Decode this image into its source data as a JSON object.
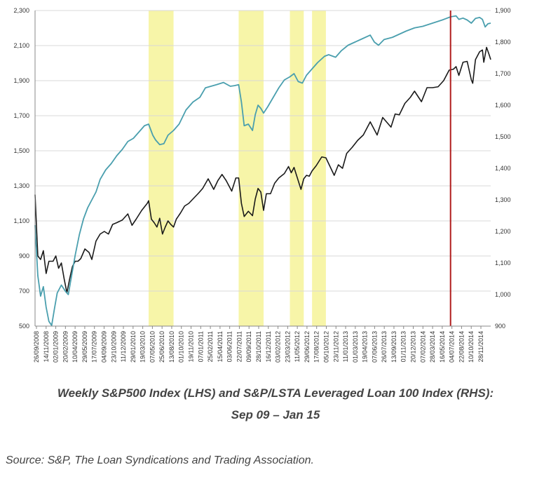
{
  "chart_data": {
    "type": "line",
    "title": "",
    "caption": [
      "Weekly S&P500 Index (LHS) and S&P/LSTA Leveraged Loan 100 Index (RHS):",
      "Sep 09 – Jan 15"
    ],
    "source": "Source: S&P, The Loan Syndications and Trading Association.",
    "grid": true,
    "legend": "none",
    "y_left": {
      "min": 500,
      "max": 2300,
      "ticks": [
        "500",
        "700",
        "900",
        "1,100",
        "1,300",
        "1,500",
        "1,700",
        "1,900",
        "2,100",
        "2,300"
      ]
    },
    "y_right": {
      "min": 900,
      "max": 1900,
      "ticks": [
        "900",
        "1,000",
        "1,100",
        "1,200",
        "1,300",
        "1,400",
        "1,500",
        "1,600",
        "1,700",
        "1,800",
        "1,900"
      ]
    },
    "x_range": [
      "2008-09-26",
      "2015-01-16"
    ],
    "x_ticks": [
      "26/09/2008",
      "14/11/2008",
      "02/01/2009",
      "20/02/2009",
      "10/04/2009",
      "29/05/2009",
      "17/07/2009",
      "04/09/2009",
      "23/10/2009",
      "11/12/2009",
      "29/01/2010",
      "19/03/2010",
      "07/05/2010",
      "25/06/2010",
      "13/08/2010",
      "01/10/2010",
      "19/11/2010",
      "07/01/2011",
      "25/02/2011",
      "15/04/2011",
      "03/06/2011",
      "22/07/2011",
      "09/09/2011",
      "28/10/2011",
      "16/12/2011",
      "03/02/2012",
      "23/03/2012",
      "11/05/2012",
      "29/06/2012",
      "17/08/2012",
      "05/10/2012",
      "23/11/2012",
      "11/01/2013",
      "01/03/2013",
      "19/04/2013",
      "07/06/2013",
      "26/07/2013",
      "13/09/2013",
      "01/11/2013",
      "20/12/2013",
      "07/02/2014",
      "28/03/2014",
      "16/05/2014",
      "04/07/2014",
      "22/08/2014",
      "10/10/2014",
      "28/11/2014"
    ],
    "shaded_periods": [
      {
        "start": "2010-04-23",
        "end": "2010-08-27"
      },
      {
        "start": "2011-07-22",
        "end": "2011-11-25"
      },
      {
        "start": "2012-04-06",
        "end": "2012-06-15"
      },
      {
        "start": "2012-07-27",
        "end": "2012-10-05"
      }
    ],
    "shade_color": "#f7f5a8",
    "marker": {
      "date": "2014-06-27",
      "color": "#b01c1c"
    },
    "series": [
      {
        "name": "",
        "axis": "left",
        "color": "#1a1a1a",
        "points": [
          [
            "2008-09-26",
            1250
          ],
          [
            "2008-10-10",
            900
          ],
          [
            "2008-10-24",
            880
          ],
          [
            "2008-11-07",
            930
          ],
          [
            "2008-11-21",
            800
          ],
          [
            "2008-12-05",
            870
          ],
          [
            "2008-12-26",
            870
          ],
          [
            "2009-01-09",
            900
          ],
          [
            "2009-01-23",
            830
          ],
          [
            "2009-02-06",
            860
          ],
          [
            "2009-02-20",
            770
          ],
          [
            "2009-03-06",
            690
          ],
          [
            "2009-03-20",
            770
          ],
          [
            "2009-04-03",
            840
          ],
          [
            "2009-04-17",
            870
          ],
          [
            "2009-05-01",
            870
          ],
          [
            "2009-05-15",
            885
          ],
          [
            "2009-06-05",
            940
          ],
          [
            "2009-06-26",
            920
          ],
          [
            "2009-07-10",
            880
          ],
          [
            "2009-07-31",
            985
          ],
          [
            "2009-08-21",
            1025
          ],
          [
            "2009-09-11",
            1040
          ],
          [
            "2009-10-02",
            1025
          ],
          [
            "2009-10-23",
            1080
          ],
          [
            "2009-11-13",
            1090
          ],
          [
            "2009-12-11",
            1105
          ],
          [
            "2010-01-08",
            1140
          ],
          [
            "2010-01-29",
            1075
          ],
          [
            "2010-02-19",
            1110
          ],
          [
            "2010-03-19",
            1160
          ],
          [
            "2010-04-16",
            1200
          ],
          [
            "2010-04-23",
            1215
          ],
          [
            "2010-05-07",
            1110
          ],
          [
            "2010-05-21",
            1090
          ],
          [
            "2010-06-04",
            1065
          ],
          [
            "2010-06-18",
            1115
          ],
          [
            "2010-07-02",
            1025
          ],
          [
            "2010-07-16",
            1065
          ],
          [
            "2010-07-30",
            1100
          ],
          [
            "2010-08-13",
            1080
          ],
          [
            "2010-08-27",
            1065
          ],
          [
            "2010-09-10",
            1110
          ],
          [
            "2010-10-01",
            1145
          ],
          [
            "2010-10-22",
            1185
          ],
          [
            "2010-11-12",
            1200
          ],
          [
            "2010-12-03",
            1225
          ],
          [
            "2010-12-31",
            1258
          ],
          [
            "2011-01-21",
            1285
          ],
          [
            "2011-02-18",
            1340
          ],
          [
            "2011-03-18",
            1280
          ],
          [
            "2011-04-08",
            1330
          ],
          [
            "2011-04-29",
            1365
          ],
          [
            "2011-05-20",
            1330
          ],
          [
            "2011-06-17",
            1270
          ],
          [
            "2011-07-08",
            1345
          ],
          [
            "2011-07-22",
            1345
          ],
          [
            "2011-08-05",
            1200
          ],
          [
            "2011-08-19",
            1125
          ],
          [
            "2011-09-09",
            1155
          ],
          [
            "2011-09-30",
            1130
          ],
          [
            "2011-10-14",
            1225
          ],
          [
            "2011-10-28",
            1285
          ],
          [
            "2011-11-11",
            1265
          ],
          [
            "2011-11-25",
            1160
          ],
          [
            "2011-12-09",
            1255
          ],
          [
            "2011-12-30",
            1255
          ],
          [
            "2012-01-20",
            1315
          ],
          [
            "2012-02-10",
            1345
          ],
          [
            "2012-03-09",
            1370
          ],
          [
            "2012-03-30",
            1410
          ],
          [
            "2012-04-13",
            1375
          ],
          [
            "2012-04-27",
            1405
          ],
          [
            "2012-05-11",
            1355
          ],
          [
            "2012-06-01",
            1280
          ],
          [
            "2012-06-15",
            1340
          ],
          [
            "2012-06-29",
            1360
          ],
          [
            "2012-07-13",
            1355
          ],
          [
            "2012-07-27",
            1385
          ],
          [
            "2012-08-17",
            1415
          ],
          [
            "2012-09-14",
            1465
          ],
          [
            "2012-10-05",
            1460
          ],
          [
            "2012-10-26",
            1410
          ],
          [
            "2012-11-16",
            1360
          ],
          [
            "2012-12-07",
            1420
          ],
          [
            "2012-12-28",
            1400
          ],
          [
            "2013-01-18",
            1485
          ],
          [
            "2013-02-15",
            1520
          ],
          [
            "2013-03-15",
            1560
          ],
          [
            "2013-04-12",
            1590
          ],
          [
            "2013-05-17",
            1665
          ],
          [
            "2013-06-21",
            1590
          ],
          [
            "2013-07-19",
            1690
          ],
          [
            "2013-08-30",
            1635
          ],
          [
            "2013-09-20",
            1710
          ],
          [
            "2013-10-11",
            1705
          ],
          [
            "2013-11-08",
            1770
          ],
          [
            "2013-12-06",
            1805
          ],
          [
            "2013-12-27",
            1840
          ],
          [
            "2014-01-31",
            1780
          ],
          [
            "2014-02-28",
            1860
          ],
          [
            "2014-03-28",
            1860
          ],
          [
            "2014-04-25",
            1865
          ],
          [
            "2014-05-23",
            1900
          ],
          [
            "2014-06-20",
            1960
          ],
          [
            "2014-07-11",
            1965
          ],
          [
            "2014-07-25",
            1980
          ],
          [
            "2014-08-08",
            1930
          ],
          [
            "2014-08-29",
            2005
          ],
          [
            "2014-09-19",
            2010
          ],
          [
            "2014-10-10",
            1905
          ],
          [
            "2014-10-17",
            1885
          ],
          [
            "2014-10-31",
            2020
          ],
          [
            "2014-11-21",
            2065
          ],
          [
            "2014-12-05",
            2075
          ],
          [
            "2014-12-12",
            2005
          ],
          [
            "2014-12-26",
            2090
          ],
          [
            "2015-01-09",
            2045
          ],
          [
            "2015-01-16",
            2020
          ]
        ]
      },
      {
        "name": "",
        "axis": "right",
        "color": "#4a9fae",
        "points": [
          [
            "2008-09-26",
            1220
          ],
          [
            "2008-10-10",
            1060
          ],
          [
            "2008-10-24",
            995
          ],
          [
            "2008-11-07",
            1025
          ],
          [
            "2008-11-21",
            960
          ],
          [
            "2008-12-05",
            915
          ],
          [
            "2008-12-19",
            902
          ],
          [
            "2009-01-02",
            955
          ],
          [
            "2009-01-16",
            1005
          ],
          [
            "2009-02-06",
            1030
          ],
          [
            "2009-02-27",
            1010
          ],
          [
            "2009-03-13",
            1000
          ],
          [
            "2009-03-27",
            1050
          ],
          [
            "2009-04-17",
            1125
          ],
          [
            "2009-05-08",
            1190
          ],
          [
            "2009-05-29",
            1240
          ],
          [
            "2009-06-19",
            1275
          ],
          [
            "2009-07-10",
            1300
          ],
          [
            "2009-07-31",
            1325
          ],
          [
            "2009-08-21",
            1365
          ],
          [
            "2009-09-18",
            1395
          ],
          [
            "2009-10-16",
            1415
          ],
          [
            "2009-11-13",
            1440
          ],
          [
            "2009-12-11",
            1460
          ],
          [
            "2010-01-08",
            1485
          ],
          [
            "2010-02-05",
            1495
          ],
          [
            "2010-03-05",
            1515
          ],
          [
            "2010-04-02",
            1535
          ],
          [
            "2010-04-23",
            1540
          ],
          [
            "2010-05-14",
            1505
          ],
          [
            "2010-05-28",
            1490
          ],
          [
            "2010-06-18",
            1475
          ],
          [
            "2010-07-09",
            1478
          ],
          [
            "2010-07-30",
            1505
          ],
          [
            "2010-08-27",
            1520
          ],
          [
            "2010-09-24",
            1540
          ],
          [
            "2010-10-29",
            1585
          ],
          [
            "2010-12-03",
            1610
          ],
          [
            "2011-01-07",
            1625
          ],
          [
            "2011-02-04",
            1655
          ],
          [
            "2011-03-04",
            1660
          ],
          [
            "2011-04-01",
            1665
          ],
          [
            "2011-05-06",
            1672
          ],
          [
            "2011-06-10",
            1660
          ],
          [
            "2011-07-01",
            1662
          ],
          [
            "2011-07-22",
            1665
          ],
          [
            "2011-08-05",
            1610
          ],
          [
            "2011-08-19",
            1535
          ],
          [
            "2011-09-09",
            1540
          ],
          [
            "2011-09-30",
            1520
          ],
          [
            "2011-10-14",
            1570
          ],
          [
            "2011-10-28",
            1600
          ],
          [
            "2011-11-11",
            1590
          ],
          [
            "2011-11-25",
            1575
          ],
          [
            "2011-12-16",
            1595
          ],
          [
            "2012-01-13",
            1625
          ],
          [
            "2012-02-10",
            1655
          ],
          [
            "2012-03-09",
            1680
          ],
          [
            "2012-04-06",
            1690
          ],
          [
            "2012-04-27",
            1700
          ],
          [
            "2012-05-18",
            1675
          ],
          [
            "2012-06-08",
            1670
          ],
          [
            "2012-06-29",
            1695
          ],
          [
            "2012-07-27",
            1715
          ],
          [
            "2012-08-24",
            1735
          ],
          [
            "2012-09-28",
            1755
          ],
          [
            "2012-10-19",
            1760
          ],
          [
            "2012-11-23",
            1752
          ],
          [
            "2012-12-21",
            1772
          ],
          [
            "2013-01-25",
            1790
          ],
          [
            "2013-03-01",
            1800
          ],
          [
            "2013-04-05",
            1810
          ],
          [
            "2013-05-17",
            1822
          ],
          [
            "2013-06-07",
            1800
          ],
          [
            "2013-06-28",
            1790
          ],
          [
            "2013-07-26",
            1808
          ],
          [
            "2013-09-06",
            1815
          ],
          [
            "2013-10-11",
            1825
          ],
          [
            "2013-11-15",
            1835
          ],
          [
            "2013-12-27",
            1845
          ],
          [
            "2014-02-07",
            1850
          ],
          [
            "2014-03-28",
            1860
          ],
          [
            "2014-05-16",
            1870
          ],
          [
            "2014-06-27",
            1880
          ],
          [
            "2014-07-25",
            1883
          ],
          [
            "2014-08-08",
            1872
          ],
          [
            "2014-08-29",
            1876
          ],
          [
            "2014-09-19",
            1870
          ],
          [
            "2014-10-10",
            1860
          ],
          [
            "2014-10-31",
            1875
          ],
          [
            "2014-11-21",
            1878
          ],
          [
            "2014-12-05",
            1872
          ],
          [
            "2014-12-19",
            1848
          ],
          [
            "2015-01-02",
            1858
          ],
          [
            "2015-01-16",
            1860
          ]
        ]
      }
    ]
  }
}
